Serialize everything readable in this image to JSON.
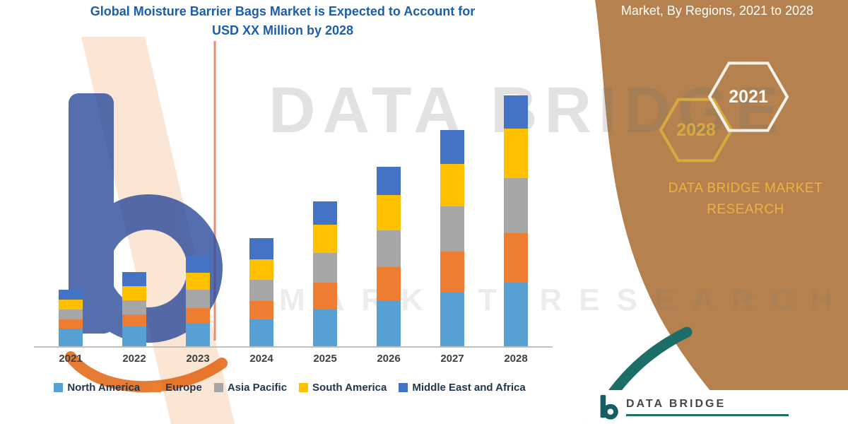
{
  "header": {
    "title_line1": "Global Moisture Barrier Bags Market is Expected to Account for",
    "title_line2": "USD XX Million by 2028"
  },
  "side_panel": {
    "title": "Market, By Regions, 2021 to 2028",
    "hexagons": [
      {
        "label": "2028"
      },
      {
        "label": "2021"
      }
    ],
    "brand_line1": "DATA BRIDGE MARKET",
    "brand_line2": "RESEARCH",
    "colors": {
      "panel_brown": "#B5824F",
      "accent_gold": "#D8A93E",
      "accent_teal": "#1C6E66"
    }
  },
  "watermark": {
    "line1": "DATA BRIDGE",
    "line2": "MARKET RESEARCH"
  },
  "footer": {
    "brand": "DATA BRIDGE"
  },
  "chart_data": {
    "type": "bar",
    "stacked": true,
    "title": "Global Moisture Barrier Bags Market, By Regions, 2021 to 2028",
    "xlabel": "",
    "ylabel": "",
    "unit": "USD Million (values masked as XX in source)",
    "values_are_estimates": true,
    "grid": false,
    "legend_position": "bottom",
    "ylim": [
      0,
      400
    ],
    "categories": [
      "2021",
      "2022",
      "2023",
      "2024",
      "2025",
      "2026",
      "2027",
      "2028"
    ],
    "series": [
      {
        "name": "North America",
        "color": "#56A0D3",
        "values": [
          25,
          28,
          32,
          38,
          52,
          64,
          76,
          90
        ]
      },
      {
        "name": "Europe",
        "color": "#ED7D31",
        "values": [
          13,
          17,
          22,
          26,
          38,
          48,
          58,
          70
        ]
      },
      {
        "name": "Asia Pacific",
        "color": "#A6A6A6",
        "values": [
          14,
          20,
          26,
          30,
          42,
          52,
          64,
          78
        ]
      },
      {
        "name": "South America",
        "color": "#FFC000",
        "values": [
          14,
          20,
          24,
          29,
          40,
          50,
          60,
          70
        ]
      },
      {
        "name": "Middle East and Africa",
        "color": "#4472C4",
        "values": [
          14,
          20,
          24,
          30,
          33,
          40,
          48,
          47
        ]
      }
    ]
  }
}
